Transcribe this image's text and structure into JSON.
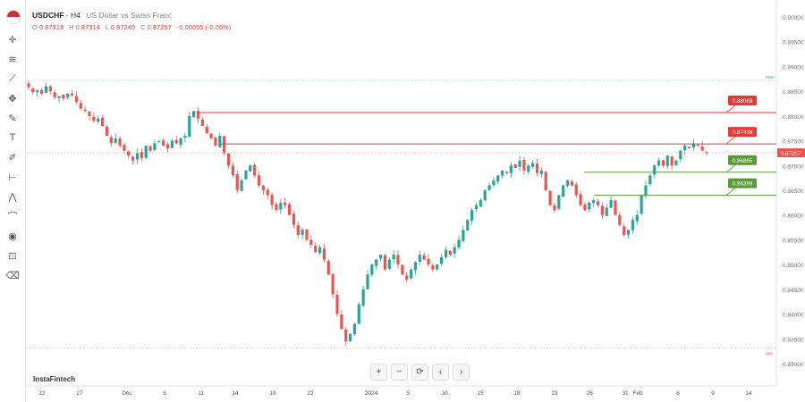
{
  "header": {
    "symbol": "USDCHF",
    "timeframe": "H4",
    "description": "US Dollar vs Swiss Franc"
  },
  "ohlc": {
    "o_label": "O",
    "o": "0.87313",
    "h_label": "H",
    "h": "0.87314",
    "l_label": "L",
    "l": "0.87240",
    "c_label": "C",
    "c": "0.87257",
    "change": "-0.00055 (-0.06%)"
  },
  "brand": "InstaFintech",
  "controls": [
    "+",
    "−",
    "⟳",
    "‹",
    "›"
  ],
  "toolbar_icons": [
    "usa-flag-icon",
    "crosshair-icon",
    "fib-icon",
    "trend-line-icon",
    "node-icon",
    "brush-icon",
    "text-icon",
    "pencil-icon",
    "ruler-icon",
    "pattern-icon",
    "magnet-icon",
    "eye-icon",
    "lock-icon",
    "trash-icon"
  ],
  "colors": {
    "up": "#26a69a",
    "down": "#ef5350",
    "resistance": "#e53935",
    "support": "#5b9a3c",
    "price_tag": "#ef5350"
  },
  "chart_data": {
    "type": "candlestick",
    "ylim": [
      0.828,
      0.901
    ],
    "yticks": [
      "0.90000",
      "0.89500",
      "0.89000",
      "0.88500",
      "0.88000",
      "0.87500",
      "0.87000",
      "0.86500",
      "0.86000",
      "0.85500",
      "0.85000",
      "0.84500",
      "0.84000",
      "0.83500",
      "0.83000"
    ],
    "xticks": [
      "22",
      "27",
      "Dec",
      "6",
      "11",
      "14",
      "19",
      "22",
      "2024",
      "5",
      "10",
      "15",
      "18",
      "23",
      "26",
      "31",
      "Feb",
      "6",
      "9",
      "14"
    ],
    "max_label": "max",
    "min_label": "min",
    "max_value": 0.8872,
    "min_value": 0.8332,
    "current_price": "0.87257",
    "levels": [
      {
        "label": "0.88069",
        "value": 0.88069,
        "kind": "resistance"
      },
      {
        "label": "0.87436",
        "value": 0.87436,
        "kind": "resistance"
      },
      {
        "label": "0.86865",
        "value": 0.86865,
        "kind": "support"
      },
      {
        "label": "0.86399",
        "value": 0.86399,
        "kind": "support"
      }
    ],
    "close_path": [
      0.8858,
      0.8848,
      0.8852,
      0.8845,
      0.886,
      0.885,
      0.8838,
      0.884,
      0.8835,
      0.8845,
      0.8842,
      0.8828,
      0.8815,
      0.881,
      0.88,
      0.879,
      0.8795,
      0.878,
      0.876,
      0.8745,
      0.8755,
      0.874,
      0.873,
      0.872,
      0.871,
      0.8725,
      0.8715,
      0.874,
      0.873,
      0.8745,
      0.875,
      0.874,
      0.8735,
      0.875,
      0.8745,
      0.8755,
      0.876,
      0.88,
      0.881,
      0.8795,
      0.878,
      0.8765,
      0.8755,
      0.874,
      0.876,
      0.8725,
      0.87,
      0.868,
      0.865,
      0.867,
      0.869,
      0.87,
      0.868,
      0.866,
      0.865,
      0.864,
      0.862,
      0.861,
      0.8625,
      0.862,
      0.86,
      0.858,
      0.856,
      0.857,
      0.855,
      0.854,
      0.8525,
      0.8535,
      0.851,
      0.848,
      0.844,
      0.84,
      0.837,
      0.8345,
      0.836,
      0.838,
      0.842,
      0.845,
      0.848,
      0.85,
      0.851,
      0.852,
      0.849,
      0.851,
      0.852,
      0.85,
      0.848,
      0.847,
      0.849,
      0.8505,
      0.852,
      0.851,
      0.85,
      0.849,
      0.85,
      0.8515,
      0.853,
      0.852,
      0.8535,
      0.855,
      0.857,
      0.859,
      0.861,
      0.862,
      0.863,
      0.865,
      0.866,
      0.867,
      0.868,
      0.869,
      0.8685,
      0.87,
      0.8695,
      0.871,
      0.869,
      0.87,
      0.8705,
      0.8685,
      0.869,
      0.865,
      0.862,
      0.861,
      0.864,
      0.866,
      0.867,
      0.866,
      0.864,
      0.862,
      0.861,
      0.8625,
      0.863,
      0.862,
      0.86,
      0.8615,
      0.863,
      0.86,
      0.858,
      0.856,
      0.857,
      0.859,
      0.86,
      0.864,
      0.866,
      0.868,
      0.87,
      0.871,
      0.87,
      0.872,
      0.87,
      0.871,
      0.873,
      0.874,
      0.8735,
      0.8745,
      0.874,
      0.873,
      0.8726
    ]
  }
}
